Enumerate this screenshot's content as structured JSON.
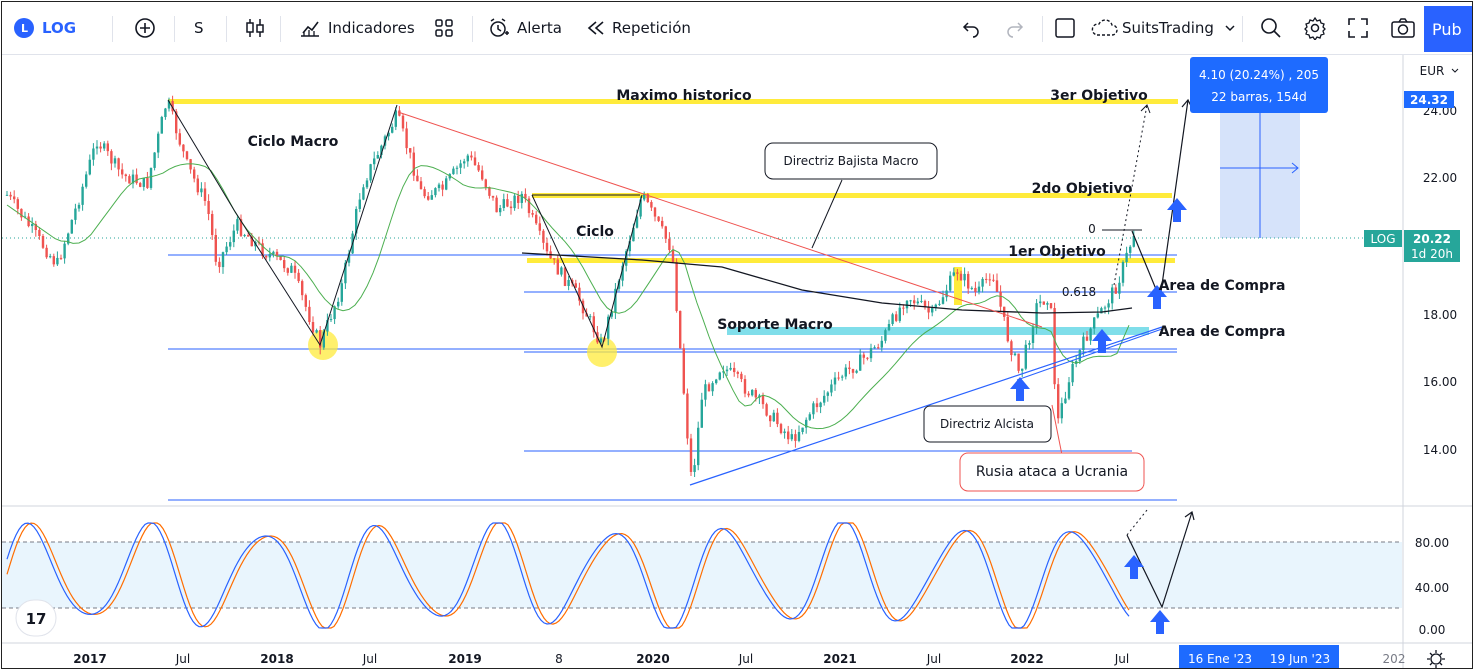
{
  "toolbar": {
    "symbol": "LOG",
    "interval": "S",
    "indicators_label": "Indicadores",
    "alert_label": "Alerta",
    "replay_label": "Repetición",
    "layout_name": "SuitsTrading",
    "publish_label": "Pub"
  },
  "currency": "EUR",
  "price_axis": {
    "ticks": [
      "24.00",
      "22.00",
      "18.00",
      "16.00",
      "14.00"
    ],
    "current_price": "20.22",
    "countdown": "1d 20h",
    "symbol_tag": "LOG",
    "high_tag": "24.32"
  },
  "osc_axis": {
    "ticks": [
      "80.00",
      "40.00",
      "0.00"
    ]
  },
  "time_axis": {
    "labels": [
      "2017",
      "Jul",
      "2018",
      "Jul",
      "2019",
      "8",
      "2020",
      "Jul",
      "2021",
      "Jul",
      "2022",
      "Jul"
    ],
    "range_start": "16 Ene '23",
    "range_end": "19 Jun '23",
    "cut_label": "202"
  },
  "measure": {
    "line1": "4.10 (20.24%) , 205",
    "line2": "22 barras, 154d"
  },
  "annotations": {
    "maximo": "Maximo historico",
    "obj3": "3er Objetivo",
    "obj2": "2do Objetivo",
    "obj1": "1er Objetivo",
    "ciclo_macro": "Ciclo Macro",
    "ciclo": "Ciclo",
    "directriz_bajista": "Directriz Bajista Macro",
    "soporte_macro": "Soporte Macro",
    "area_compra_1": "Area de Compra",
    "area_compra_2": "Area de Compra",
    "directriz_alcista": "Directriz Alcista",
    "rusia": "Rusia ataca a Ucrania",
    "fib_0": "0",
    "fib_618": "0.618"
  },
  "colors": {
    "up": "#26a69a",
    "down": "#ef5350",
    "highlight_yellow": "#ffeb3b",
    "support_cyan": "#80deea",
    "accent_blue": "#2962ff",
    "measure_blue": "#1e6bff",
    "osc_blue": "#2962ff",
    "osc_orange": "#ff6d00"
  }
}
